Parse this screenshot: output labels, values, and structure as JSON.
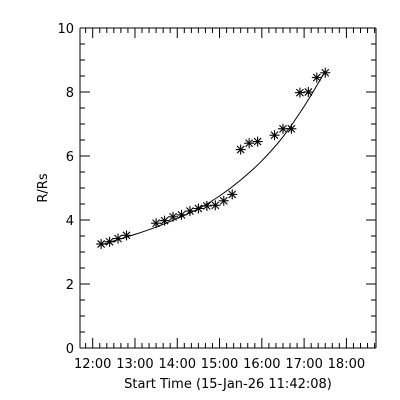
{
  "chart_data": {
    "type": "scatter",
    "title": "",
    "xlabel": "Start Time (15-Jan-26 11:42:08)",
    "ylabel": "R/Rs",
    "xlim": [
      "11:42",
      "18:42"
    ],
    "ylim": [
      0,
      10
    ],
    "x_ticks": [
      "12:00",
      "13:00",
      "14:00",
      "15:00",
      "16:00",
      "17:00",
      "18:00"
    ],
    "y_ticks": [
      "0",
      "2",
      "4",
      "6",
      "8",
      "10"
    ],
    "grid": false,
    "legend": "none",
    "marker": "asterisk",
    "series": [
      {
        "x": [
          "12:12",
          "12:24",
          "12:36",
          "12:48",
          "13:30",
          "13:42",
          "13:54",
          "14:06",
          "14:18",
          "14:30",
          "14:42",
          "14:54",
          "15:06",
          "15:18",
          "15:30",
          "15:42",
          "15:54",
          "16:18",
          "16:30",
          "16:42",
          "16:54",
          "17:06",
          "17:18",
          "17:30"
        ],
        "y": [
          3.25,
          3.32,
          3.42,
          3.52,
          3.9,
          3.98,
          4.1,
          4.16,
          4.28,
          4.36,
          4.44,
          4.46,
          4.6,
          4.8,
          6.2,
          6.4,
          6.45,
          6.65,
          6.85,
          6.85,
          7.98,
          8.0,
          8.45,
          8.6
        ]
      }
    ],
    "fit": {
      "type": "curve",
      "x": [
        "12:12",
        "12:30",
        "13:00",
        "13:30",
        "14:00",
        "14:30",
        "15:00",
        "15:30",
        "16:00",
        "16:30",
        "17:00",
        "17:30"
      ],
      "y": [
        3.22,
        3.35,
        3.55,
        3.78,
        4.05,
        4.35,
        4.75,
        5.25,
        5.85,
        6.6,
        7.55,
        8.65
      ]
    }
  }
}
